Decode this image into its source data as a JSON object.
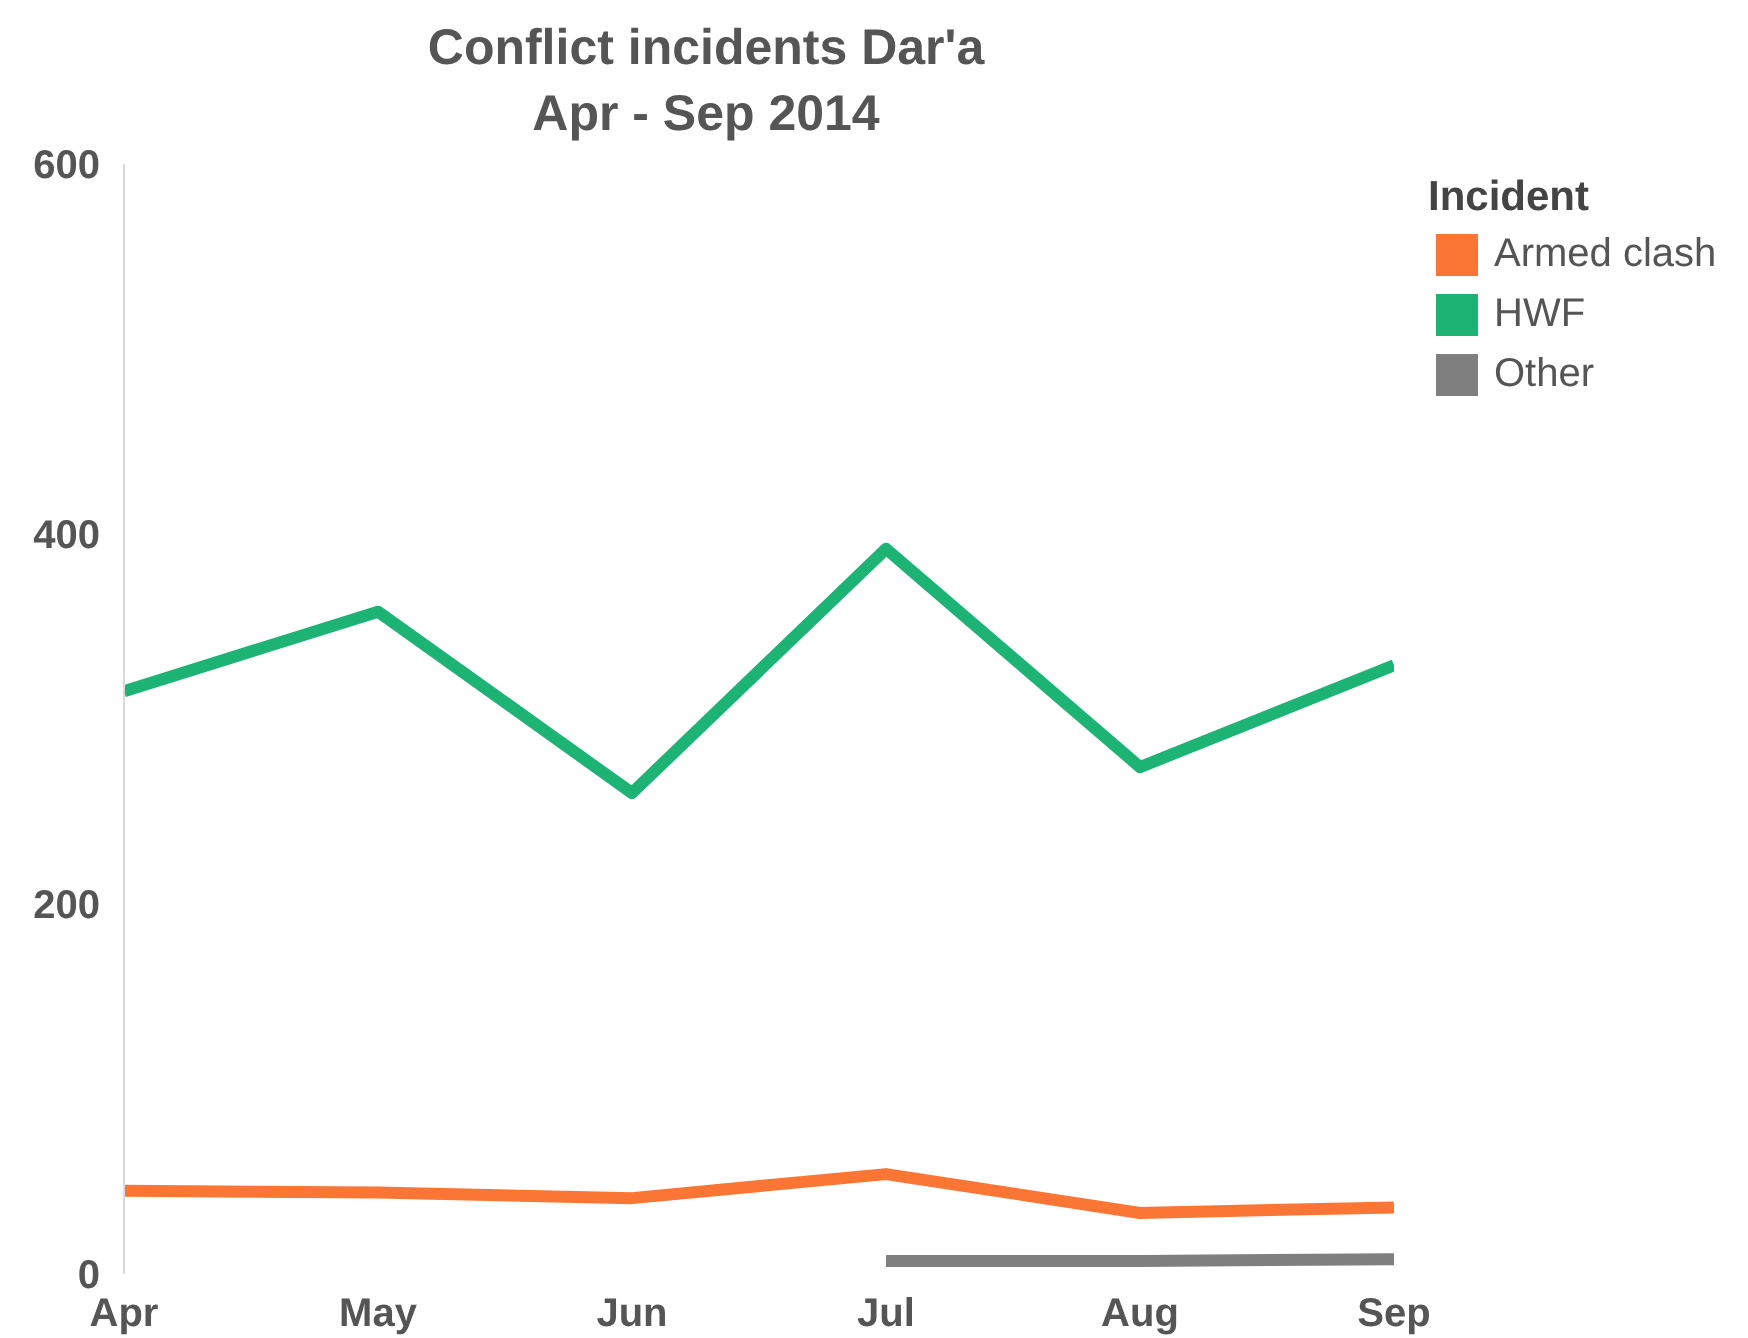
{
  "chart_data": {
    "type": "line",
    "title": "Conflict incidents Dar'a",
    "subtitle": "Apr - Sep 2014",
    "legend_title": "Incident",
    "categories": [
      "Apr",
      "May",
      "Jun",
      "Jul",
      "Aug",
      "Sep"
    ],
    "series": [
      {
        "name": "Armed clash",
        "color": "#fb7634",
        "values": [
          45,
          44,
          41,
          54,
          33,
          36
        ]
      },
      {
        "name": "HWF",
        "color": "#1db374",
        "values": [
          315,
          358,
          260,
          392,
          274,
          329
        ]
      },
      {
        "name": "Other",
        "color": "#7f7f7f",
        "values": [
          null,
          null,
          null,
          7,
          7,
          8
        ]
      }
    ],
    "ylim": [
      0,
      600
    ],
    "yticks": [
      0,
      200,
      400,
      600
    ],
    "legend": "top right"
  }
}
